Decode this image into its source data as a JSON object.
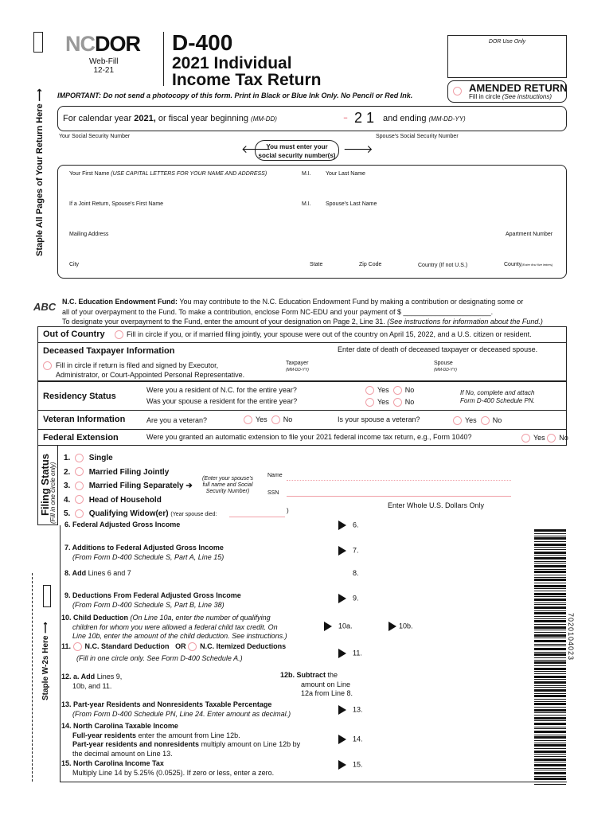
{
  "header": {
    "logo": "NCDOR",
    "web_fill": "Web-Fill",
    "version": "12-21",
    "form_number": "D-400",
    "title_line1": "2021 Individual",
    "title_line2": "Income Tax Return",
    "dor_use": "DOR Use Only",
    "amended": "AMENDED RETURN",
    "amended_note": "Fill in circle",
    "amended_note2": "(See instructions)",
    "important": "IMPORTANT:  Do not send a photocopy of this form.  Print in Black or Blue Ink Only.  No Pencil or Red Ink."
  },
  "side": {
    "staple_all": "Staple  All Pages of Your Return Here",
    "staple_w2": "Staple  W-2s Here",
    "barcode_number": "7020104023"
  },
  "period": {
    "prefix": "For calendar year ",
    "year": "2021,",
    "suffix": " or fiscal year beginning ",
    "fmt1": "(MM-DD)",
    "dash": "-",
    "yy": "2 1",
    "ending": "and ending ",
    "fmt2": "(MM-DD-YY)"
  },
  "ssn": {
    "yours": "Your Social Security Number",
    "spouse": "Spouse's Social Security Number",
    "must1": "You must enter your",
    "must2": "social security number(s)"
  },
  "name_block": {
    "first": "Your First Name ",
    "first_note": "(USE CAPITAL  LETTERS FOR YOUR NAME AND ADDRESS)",
    "mi": "M.I.",
    "last": "Your Last Name",
    "sp_first": "If a Joint Return, Spouse's First Name",
    "sp_mi": "M.I.",
    "sp_last": "Spouse's Last Name",
    "address": "Mailing Address",
    "apt": "Apartment Number",
    "city": "City",
    "state": "State",
    "zip": "Zip Code",
    "country": "Country  (If not U.S.)",
    "county": "County",
    "county_note": "(Enter first five letters)"
  },
  "edu": {
    "title": "N.C. Education Endowment Fund:",
    "line1": " You may contribute to the N.C. Education Endowment Fund by making a contribution or designating some or",
    "line2": "all of your overpayment to the Fund.  To make a contribution, enclose Form NC-EDU and your payment of $ ______________________.",
    "line3": "To designate your overpayment to the Fund, enter the amount of your designation on Page 2, Line 31.  ",
    "line3i": "(See instructions for information about the Fund.)"
  },
  "out_country": {
    "label": "Out of Country",
    "text": "Fill in circle if you, or if married filing jointly, your spouse were out of the country on April 15, 2022, and a U.S. citizen or resident."
  },
  "deceased": {
    "label": "Deceased Taxpayer Information",
    "date_note": "Enter date of death of deceased taxpayer or deceased spouse.",
    "fill1": "Fill in circle if return is filed and signed by Executor,",
    "fill2": "Administrator, or Court-Appointed Personal Representative.",
    "taxpayer": "Taxpayer",
    "spouse": "Spouse",
    "fmt": "(MM-DD-YY)"
  },
  "residency": {
    "label": "Residency Status",
    "q1": "Were you a resident of N.C. for the entire year?",
    "q2": "Was your spouse a resident for the entire year?",
    "yes": "Yes",
    "no": "No",
    "note1": "If No, complete and attach",
    "note2": "Form D-400 Schedule PN."
  },
  "veteran": {
    "label": "Veteran Information",
    "q1": "Are you a veteran?",
    "q2": "Is your spouse a veteran?",
    "yes": "Yes",
    "no": "No"
  },
  "extension": {
    "label": "Federal Extension",
    "q": "Were you granted an automatic extension to file your 2021 federal income tax return, e.g., Form 1040?",
    "yes": "Yes",
    "no": "No"
  },
  "filing": {
    "label": "Filing Status",
    "sub": "(Fill in one circle only)",
    "options": [
      "Single",
      "Married Filing Jointly",
      "Married Filing Separately",
      "Head of Household",
      "Qualifying Widow(er)"
    ],
    "spouse_note1": "(Enter your spouse's",
    "spouse_note2": "full name and Social",
    "spouse_note3": "Security Number)",
    "name": "Name",
    "ssn": "SSN",
    "year_died": "(Year spouse died:",
    "close": ")",
    "dollars": "Enter Whole U.S. Dollars Only"
  },
  "lines": {
    "l6": "6. Federal Adjusted Gross Income",
    "l6n": "6.",
    "l7": "7. Additions to Federal Adjusted Gross Income",
    "l7s": "(From Form D-400 Schedule S, Part A, Line 15)",
    "l7n": "7.",
    "l8": "8.  Add",
    "l8r": " Lines 6 and 7",
    "l8n": "8.",
    "l9": "9. Deductions From Federal Adjusted Gross Income",
    "l9s": "(From Form D-400 Schedule S, Part B, Line 38)",
    "l9n": "9.",
    "l10": "10. Child Deduction",
    "l10s1": "  (On Line 10a, enter the number of qualifying",
    "l10s2": "children for whom you were allowed a federal child tax credit.  On",
    "l10s3": "Line 10b, enter the amount of the child deduction.  See instructions.)",
    "l10a": "10a.",
    "l10b": "10b.",
    "l11": "11.",
    "l11a": "N.C. Standard Deduction",
    "l11or": "OR",
    "l11b": "N.C. Itemized Deductions",
    "l11s": "(Fill in one circle only.  See Form D-400 Schedule A.)",
    "l11n": "11.",
    "l12a": "12. a.  Add",
    "l12a_r": " Lines 9,",
    "l12a2": "10b, and 11.",
    "l12b": "12b.  Subtract",
    "l12b_r": " the",
    "l12b2": "amount on Line",
    "l12b3": "12a from Line 8.",
    "l13": "13. Part-year Residents and Nonresidents Taxable Percentage",
    "l13s": "(From Form D-400 Schedule PN, Line 24.  Enter amount as decimal.)",
    "l13n": "13.",
    "l14": "14. North Carolina Taxable Income",
    "l14a": "Full-year residents",
    "l14a_r": " enter the amount from Line 12b.",
    "l14b": "Part-year residents and nonresidents",
    "l14b_r": " multiply amount on Line 12b by",
    "l14c": "the decimal amount on Line 13.",
    "l14n": "14.",
    "l15": "15. North Carolina Income Tax",
    "l15s": "Multiply Line 14 by 5.25% (0.0525).  If zero or less, enter a zero.",
    "l15n": "15."
  },
  "colors": {
    "circle": "#f0a0a8",
    "logo_gray": "#999999"
  }
}
